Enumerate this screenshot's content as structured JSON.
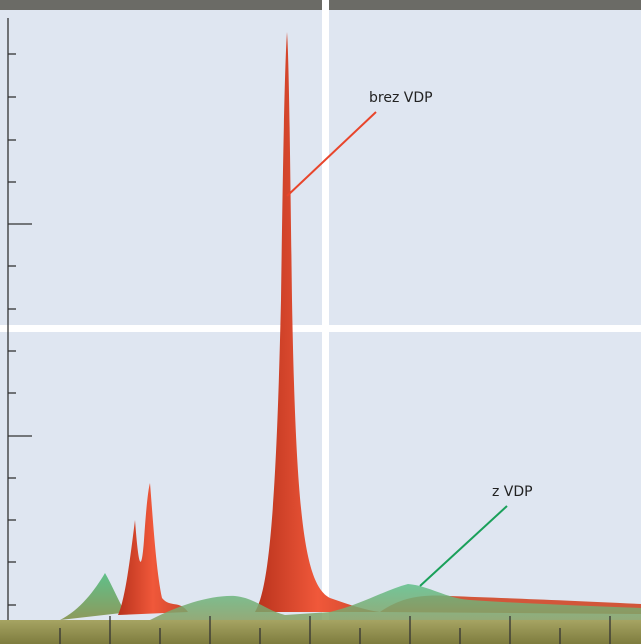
{
  "annotations": [
    {
      "label": "brez VDP"
    },
    {
      "label": "z VDP"
    }
  ]
}
